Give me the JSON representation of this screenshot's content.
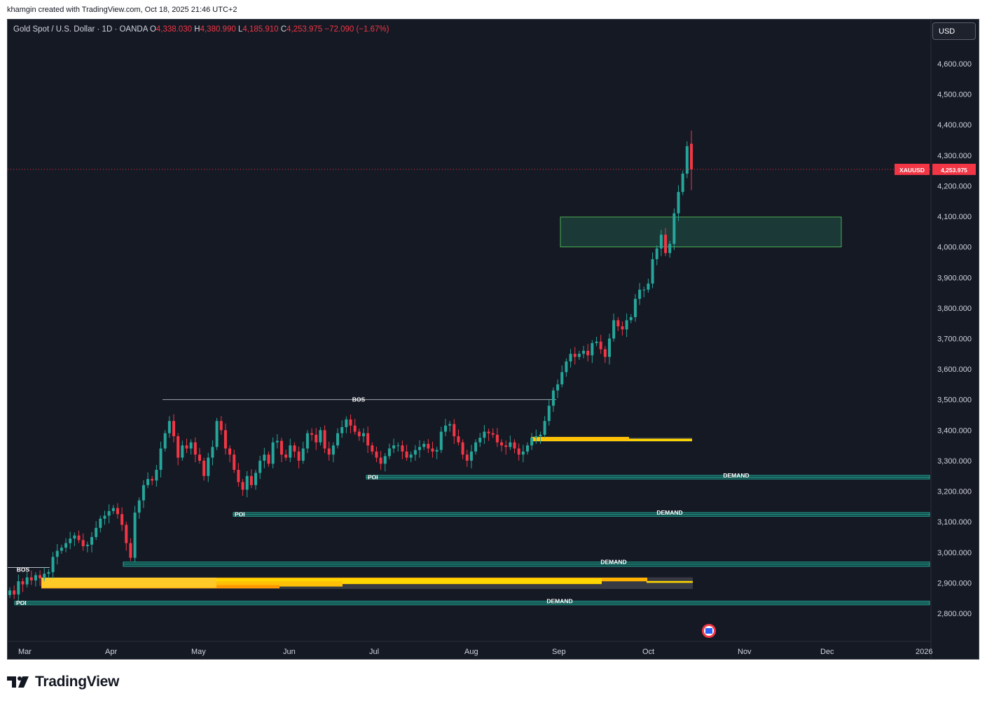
{
  "header": {
    "credit": "khamgin created with TradingView.com, Oct 18, 2025 21:46 UTC+2"
  },
  "legend": {
    "symbol": "Gold Spot / U.S. Dollar · 1D · OANDA",
    "o_label": "O",
    "o_value": "4,338.030",
    "h_label": "H",
    "h_value": "4,380.990",
    "l_label": "L",
    "l_value": "4,185.910",
    "c_label": "C",
    "c_value": "4,253.975",
    "change": "−72.090 (−1.67%)"
  },
  "currency_button": "USD",
  "price_tag": {
    "symbol": "XAUUSD",
    "value": "4,253.975"
  },
  "footer": {
    "brand": "TradingView"
  },
  "colors": {
    "background": "#151924",
    "up": "#26a69a",
    "down": "#f23645",
    "demand_zone": "#26a69a",
    "fvg_yellow": "#ffd600",
    "target_box": "#2e7d6a"
  },
  "chart_data": {
    "type": "candlestick",
    "symbol": "XAUUSD",
    "timeframe": "1D",
    "ylim": [
      2740,
      4700
    ],
    "y_ticks": [
      2800,
      2900,
      3000,
      3100,
      3200,
      3300,
      3400,
      3500,
      3600,
      3700,
      3800,
      3900,
      4000,
      4100,
      4200,
      4300,
      4400,
      4500,
      4600
    ],
    "y_tick_labels": [
      "2,800.000",
      "2,900.000",
      "3,000.000",
      "3,100.000",
      "3,200.000",
      "3,300.000",
      "3,400.000",
      "3,500.000",
      "3,600.000",
      "3,700.000",
      "3,800.000",
      "3,900.000",
      "4,000.000",
      "4,100.000",
      "4,200.000",
      "4,300.000",
      "4,400.000",
      "4,500.000",
      "4,600.000"
    ],
    "x_ticks": [
      "Mar",
      "Apr",
      "May",
      "Jun",
      "Jul",
      "Aug",
      "Sep",
      "Oct",
      "Nov",
      "Dec",
      "2026"
    ],
    "last_price": 4253.975,
    "closes": [
      2875,
      2862,
      2905,
      2895,
      2918,
      2908,
      2925,
      2915,
      2930,
      2935,
      2985,
      3005,
      3015,
      3030,
      3045,
      3055,
      3040,
      3020,
      3025,
      3050,
      3080,
      3110,
      3120,
      3135,
      3145,
      3125,
      3090,
      3030,
      2982,
      3130,
      3170,
      3220,
      3240,
      3235,
      3270,
      3340,
      3390,
      3430,
      3380,
      3310,
      3350,
      3340,
      3360,
      3320,
      3300,
      3250,
      3310,
      3345,
      3430,
      3400,
      3340,
      3320,
      3270,
      3230,
      3205,
      3250,
      3220,
      3260,
      3300,
      3320,
      3290,
      3360,
      3365,
      3320,
      3310,
      3350,
      3330,
      3300,
      3340,
      3390,
      3385,
      3360,
      3400,
      3340,
      3320,
      3350,
      3390,
      3410,
      3435,
      3415,
      3395,
      3380,
      3390,
      3350,
      3330,
      3310,
      3290,
      3315,
      3340,
      3350,
      3350,
      3330,
      3310,
      3320,
      3335,
      3345,
      3355,
      3340,
      3330,
      3335,
      3395,
      3415,
      3420,
      3380,
      3360,
      3320,
      3300,
      3330,
      3360,
      3375,
      3395,
      3390,
      3385,
      3360,
      3350,
      3345,
      3360,
      3340,
      3320,
      3330,
      3350,
      3375,
      3380,
      3385,
      3430,
      3480,
      3530,
      3550,
      3590,
      3625,
      3650,
      3640,
      3650,
      3660,
      3645,
      3685,
      3690,
      3665,
      3640,
      3700,
      3760,
      3740,
      3730,
      3760,
      3770,
      3830,
      3860,
      3860,
      3880,
      3960,
      3995,
      4040,
      3980,
      4010,
      4110,
      4180,
      4240,
      4330,
      4254
    ],
    "bos_levels": [
      3500,
      2950
    ],
    "demand_zones": [
      {
        "label": "DEMAND",
        "poi": "POI",
        "top": 3252,
        "bottom": 3240
      },
      {
        "label": "DEMAND",
        "poi": "POI",
        "top": 3130,
        "bottom": 3118
      },
      {
        "label": "DEMAND",
        "poi": "",
        "top": 2968,
        "bottom": 2954
      },
      {
        "label": "DEMAND",
        "poi": "POI",
        "top": 2840,
        "bottom": 2828
      }
    ],
    "target_zone": [
      4000,
      4098
    ],
    "labels": {
      "bos": "BOS",
      "poi": "POI",
      "demand": "DEMAND"
    }
  }
}
